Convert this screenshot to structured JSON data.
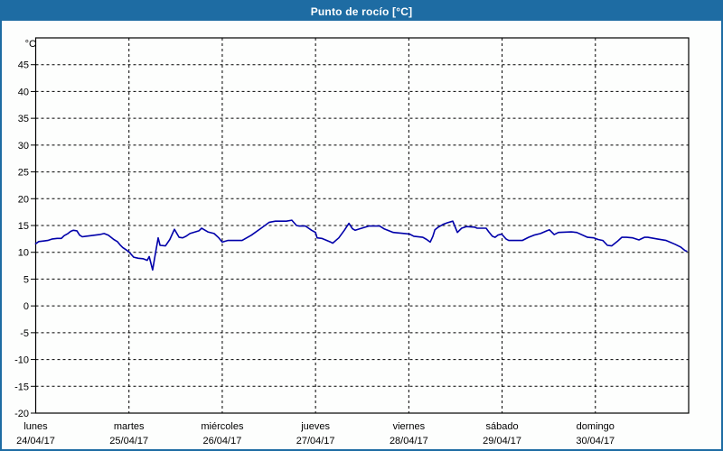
{
  "window": {
    "title": "Punto de rocío [°C]",
    "title_bar_color": "#1e6ca3",
    "border_color": "#1e6ca3",
    "background": "#fdfefd",
    "title_text_color": "#ffffff"
  },
  "chart_data": {
    "type": "line",
    "title": "Punto de rocío [°C]",
    "grid": "dashed",
    "grid_color": "#000000",
    "plot_background": "#fdfefd",
    "y_axis": {
      "label": "°C",
      "range": [
        -20,
        50
      ],
      "tick_step": 5,
      "ticks": [
        45,
        40,
        35,
        30,
        25,
        20,
        15,
        10,
        5,
        0,
        -5,
        -10,
        -15,
        -20
      ]
    },
    "x_axis": {
      "range_hours": [
        0,
        168
      ],
      "day_ticks": [
        {
          "day": "lunes",
          "date": "24/04/17",
          "hour": 0
        },
        {
          "day": "martes",
          "date": "25/04/17",
          "hour": 24
        },
        {
          "day": "miércoles",
          "date": "26/04/17",
          "hour": 48
        },
        {
          "day": "jueves",
          "date": "27/04/17",
          "hour": 72
        },
        {
          "day": "viernes",
          "date": "28/04/17",
          "hour": 96
        },
        {
          "day": "sábado",
          "date": "29/04/17",
          "hour": 120
        },
        {
          "day": "domingo",
          "date": "30/04/17",
          "hour": 144
        }
      ]
    },
    "series": [
      {
        "name": "Punto de rocío",
        "color": "#0000aa",
        "points": [
          [
            0,
            11.6
          ],
          [
            0.8,
            12.0
          ],
          [
            2.0,
            12.1
          ],
          [
            3.1,
            12.2
          ],
          [
            4.3,
            12.5
          ],
          [
            5.5,
            12.6
          ],
          [
            6.6,
            12.6
          ],
          [
            7.3,
            13.1
          ],
          [
            8.3,
            13.5
          ],
          [
            9.0,
            13.9
          ],
          [
            9.7,
            14.1
          ],
          [
            10.6,
            14.0
          ],
          [
            11.3,
            13.2
          ],
          [
            12.0,
            12.9
          ],
          [
            12.9,
            13.0
          ],
          [
            14.1,
            13.1
          ],
          [
            15.2,
            13.2
          ],
          [
            16.4,
            13.3
          ],
          [
            17.6,
            13.5
          ],
          [
            18.7,
            13.2
          ],
          [
            19.4,
            12.8
          ],
          [
            20.1,
            12.4
          ],
          [
            21.0,
            12.0
          ],
          [
            21.7,
            11.4
          ],
          [
            22.4,
            10.9
          ],
          [
            23.4,
            10.4
          ],
          [
            24.1,
            10.0
          ],
          [
            25.2,
            9.1
          ],
          [
            26.4,
            8.9
          ],
          [
            27.6,
            8.8
          ],
          [
            28.7,
            8.5
          ],
          [
            29.2,
            9.2
          ],
          [
            30.1,
            6.7
          ],
          [
            30.8,
            9.8
          ],
          [
            31.5,
            12.7
          ],
          [
            32.0,
            11.3
          ],
          [
            33.4,
            11.2
          ],
          [
            34.5,
            12.4
          ],
          [
            35.7,
            14.3
          ],
          [
            36.9,
            12.8
          ],
          [
            37.8,
            12.7
          ],
          [
            38.7,
            13.0
          ],
          [
            39.7,
            13.5
          ],
          [
            42.0,
            14.0
          ],
          [
            42.7,
            14.5
          ],
          [
            44.3,
            13.8
          ],
          [
            45.9,
            13.5
          ],
          [
            47.1,
            12.7
          ],
          [
            48.0,
            11.9
          ],
          [
            49.4,
            12.2
          ],
          [
            53.1,
            12.2
          ],
          [
            55.5,
            13.2
          ],
          [
            57.8,
            14.4
          ],
          [
            60.1,
            15.6
          ],
          [
            61.7,
            15.8
          ],
          [
            64.5,
            15.8
          ],
          [
            65.9,
            16.0
          ],
          [
            67.1,
            15.0
          ],
          [
            67.8,
            14.9
          ],
          [
            69.4,
            14.9
          ],
          [
            71.0,
            14.1
          ],
          [
            72.0,
            13.7
          ],
          [
            72.4,
            12.7
          ],
          [
            73.6,
            12.6
          ],
          [
            75.9,
            11.9
          ],
          [
            76.4,
            11.7
          ],
          [
            78.0,
            12.7
          ],
          [
            79.4,
            14.1
          ],
          [
            80.6,
            15.4
          ],
          [
            81.5,
            14.4
          ],
          [
            82.2,
            14.1
          ],
          [
            83.4,
            14.4
          ],
          [
            85.7,
            14.9
          ],
          [
            88.5,
            14.9
          ],
          [
            89.6,
            14.4
          ],
          [
            92.0,
            13.7
          ],
          [
            95.0,
            13.5
          ],
          [
            96.2,
            13.4
          ],
          [
            97.3,
            13.0
          ],
          [
            99.6,
            12.8
          ],
          [
            100.6,
            12.4
          ],
          [
            101.5,
            11.9
          ],
          [
            102.2,
            13.0
          ],
          [
            102.7,
            14.2
          ],
          [
            103.6,
            14.7
          ],
          [
            104.8,
            15.2
          ],
          [
            105.9,
            15.5
          ],
          [
            107.3,
            15.8
          ],
          [
            108.5,
            13.7
          ],
          [
            109.6,
            14.5
          ],
          [
            110.8,
            14.8
          ],
          [
            112.9,
            14.7
          ],
          [
            113.6,
            14.5
          ],
          [
            115.9,
            14.5
          ],
          [
            116.6,
            13.8
          ],
          [
            117.5,
            13.0
          ],
          [
            118.2,
            12.8
          ],
          [
            118.9,
            13.2
          ],
          [
            119.9,
            13.4
          ],
          [
            121.0,
            12.5
          ],
          [
            121.7,
            12.2
          ],
          [
            125.2,
            12.2
          ],
          [
            126.8,
            12.8
          ],
          [
            128.2,
            13.2
          ],
          [
            129.9,
            13.5
          ],
          [
            131.5,
            14.0
          ],
          [
            132.2,
            14.2
          ],
          [
            133.4,
            13.3
          ],
          [
            134.5,
            13.7
          ],
          [
            137.8,
            13.8
          ],
          [
            139.2,
            13.7
          ],
          [
            142.0,
            12.8
          ],
          [
            143.6,
            12.7
          ],
          [
            144.7,
            12.4
          ],
          [
            145.9,
            12.2
          ],
          [
            147.1,
            11.3
          ],
          [
            148.2,
            11.2
          ],
          [
            149.6,
            12.0
          ],
          [
            150.8,
            12.8
          ],
          [
            152.0,
            12.8
          ],
          [
            153.6,
            12.7
          ],
          [
            155.2,
            12.3
          ],
          [
            156.6,
            12.8
          ],
          [
            157.5,
            12.8
          ],
          [
            159.9,
            12.5
          ],
          [
            162.2,
            12.2
          ],
          [
            164.5,
            11.5
          ],
          [
            165.9,
            11.0
          ],
          [
            167.1,
            10.3
          ],
          [
            167.5,
            10.2
          ]
        ]
      }
    ]
  }
}
